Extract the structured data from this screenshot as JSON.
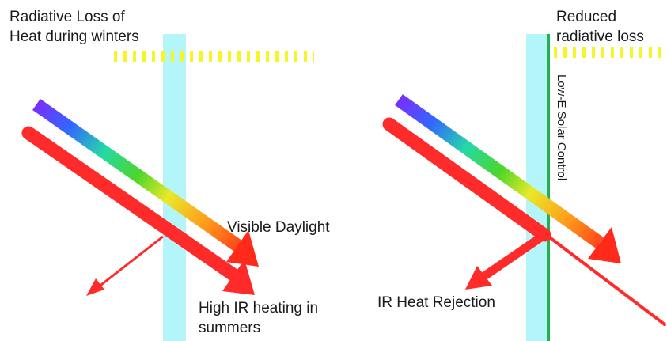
{
  "left_panel": {
    "radiative_loss_label": "Radiative Loss of\nHeat during winters",
    "visible_label": "Visible Daylight",
    "ir_label": "High IR heating in\nsummers"
  },
  "right_panel": {
    "reduced_loss_label": "Reduced\nradiative loss",
    "coating_label": "Low-E Solar Control",
    "ir_rejection_label": "IR Heat Rejection"
  },
  "colors": {
    "glass": "#b3f5f8",
    "coating": "#22b14c",
    "ir_ray": "#ff2a2a",
    "radiative_dashes": "#f5f528",
    "spectrum": [
      "#7b2cff",
      "#3366ff",
      "#25d8a8",
      "#4cd62a",
      "#e9e92a",
      "#ff9a1a",
      "#ff2a1a"
    ]
  }
}
